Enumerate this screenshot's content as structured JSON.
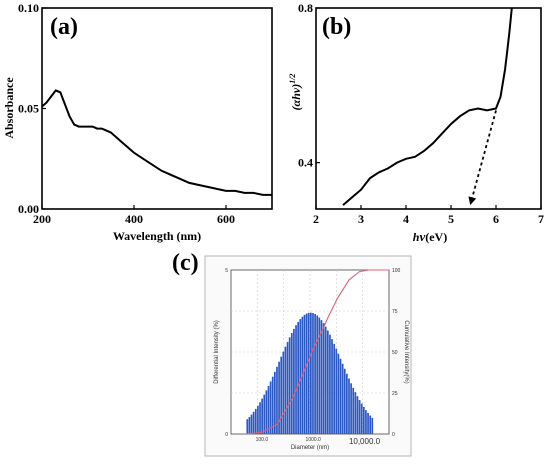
{
  "chart_data": [
    {
      "panel": "(a)",
      "type": "line",
      "xlabel": "Wavelength (nm)",
      "ylabel": "Absorbance",
      "xlim": [
        200,
        700
      ],
      "ylim": [
        0.0,
        0.1
      ],
      "xticks": [
        "200",
        "400",
        "600"
      ],
      "yticks": [
        "0.00",
        "0.05",
        "0.10"
      ],
      "series": [
        {
          "x": [
            200,
            210,
            220,
            230,
            240,
            250,
            260,
            270,
            280,
            290,
            300,
            310,
            320,
            330,
            340,
            350,
            360,
            370,
            380,
            390,
            400,
            420,
            440,
            460,
            480,
            500,
            520,
            540,
            560,
            580,
            600,
            620,
            640,
            660,
            680,
            700
          ],
          "y": [
            0.051,
            0.053,
            0.056,
            0.059,
            0.058,
            0.052,
            0.046,
            0.042,
            0.041,
            0.041,
            0.041,
            0.041,
            0.04,
            0.04,
            0.039,
            0.038,
            0.036,
            0.034,
            0.032,
            0.03,
            0.028,
            0.025,
            0.022,
            0.019,
            0.017,
            0.015,
            0.013,
            0.012,
            0.011,
            0.01,
            0.009,
            0.009,
            0.008,
            0.008,
            0.007,
            0.007
          ]
        }
      ]
    },
    {
      "panel": "(b)",
      "type": "line",
      "xlabel": "hν (eV)",
      "ylabel": "(αhν)^1/2",
      "xlim": [
        2,
        7
      ],
      "ylim": [
        0.28,
        0.8
      ],
      "xticks": [
        "2",
        "3",
        "4",
        "5",
        "6",
        "7"
      ],
      "yticks": [
        "0.4",
        "0.8"
      ],
      "series": [
        {
          "x": [
            2.6,
            2.8,
            3.0,
            3.2,
            3.4,
            3.6,
            3.8,
            4.0,
            4.2,
            4.4,
            4.6,
            4.8,
            5.0,
            5.2,
            5.4,
            5.6,
            5.8,
            6.0,
            6.1,
            6.2,
            6.25,
            6.3,
            6.35
          ],
          "y": [
            0.29,
            0.31,
            0.33,
            0.36,
            0.375,
            0.385,
            0.4,
            0.41,
            0.415,
            0.43,
            0.45,
            0.475,
            0.5,
            0.52,
            0.535,
            0.54,
            0.535,
            0.54,
            0.57,
            0.64,
            0.69,
            0.74,
            0.8
          ]
        }
      ],
      "tangent": {
        "x": [
          6.0,
          5.45
        ],
        "y": [
          0.535,
          0.3
        ]
      }
    },
    {
      "panel": "(c)",
      "type": "bar",
      "xlabel": "Diameter (nm)",
      "ylabel_left": "Differential Intensity (%)",
      "ylabel_right": "Cumulative Intensity(%)",
      "xscale": "log",
      "xlim": [
        25,
        30000
      ],
      "xticks": [
        "100.0",
        "1000.0",
        "10,000.0"
      ],
      "yticks_left": [
        "0",
        "5"
      ],
      "yticks_right": [
        "0",
        "25",
        "50",
        "75",
        "100"
      ],
      "distribution": {
        "log_mean": 2.95,
        "log_sigma": 0.6,
        "peak_percent": 3.7,
        "x_from": 50,
        "x_to": 15000,
        "bins": 60
      },
      "cumulative_series": {
        "x": [
          50,
          100,
          200,
          400,
          700,
          1000,
          1500,
          2000,
          3000,
          5000,
          8000,
          12000,
          15000,
          20000,
          30000
        ],
        "y": [
          0,
          1,
          6,
          22,
          40,
          52,
          63,
          72,
          83,
          94,
          99,
          100,
          100,
          100,
          100
        ]
      }
    }
  ],
  "colors": {
    "axis": "#000000",
    "bar": "#2b58c4",
    "cumulative": "#e0607a",
    "frame_c": "#b5b5b5"
  }
}
